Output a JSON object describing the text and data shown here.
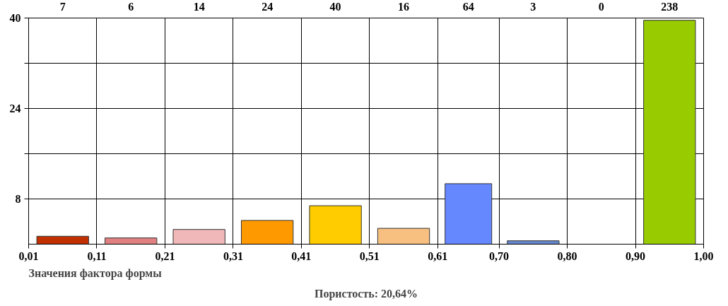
{
  "chart_data": {
    "type": "histogram",
    "xlabel": "Значения фактора формы",
    "annotations": [
      "Пористость: 20,64%",
      "7",
      "6",
      "14",
      "24",
      "40",
      "16",
      "64",
      "3",
      "0",
      "238"
    ],
    "bins": [
      0.01,
      0.11,
      0.21,
      0.31,
      0.41,
      0.51,
      0.61,
      0.7,
      0.8,
      0.9,
      1.0
    ],
    "values": [
      1.4,
      1.1,
      2.6,
      4.2,
      6.8,
      2.8,
      10.7,
      0.6,
      0,
      39.6
    ],
    "colors": [
      "#c03000",
      "#e08080",
      "#f0b8b8",
      "#ff9900",
      "#ffcc00",
      "#f8c080",
      "#6688ff",
      "#6688cc",
      "#999999",
      "#99cc00"
    ],
    "xlim": [
      0.01,
      1.0
    ],
    "ylim": [
      0,
      40
    ],
    "xticks": [
      {
        "value": 0.01,
        "label": "0,01"
      },
      {
        "value": 0.11,
        "label": "0,11"
      },
      {
        "value": 0.21,
        "label": "0,21"
      },
      {
        "value": 0.31,
        "label": "0,31"
      },
      {
        "value": 0.41,
        "label": "0,41"
      },
      {
        "value": 0.51,
        "label": "0,51"
      },
      {
        "value": 0.61,
        "label": "0,61"
      },
      {
        "value": 0.7,
        "label": "0,70"
      },
      {
        "value": 0.8,
        "label": "0,80"
      },
      {
        "value": 0.9,
        "label": "0,90"
      },
      {
        "value": 1.0,
        "label": "1,00"
      }
    ],
    "yticks": [
      {
        "value": 8,
        "label": "8"
      },
      {
        "value": 16,
        "label": null
      },
      {
        "value": 24,
        "label": "24"
      },
      {
        "value": 32,
        "label": null
      },
      {
        "value": 40,
        "label": "40"
      }
    ],
    "grid": true
  }
}
